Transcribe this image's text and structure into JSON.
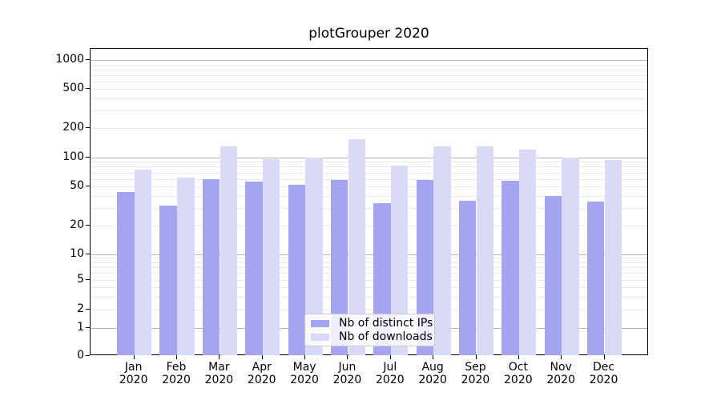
{
  "chart_data": {
    "type": "bar",
    "title": "plotGrouper 2020",
    "scale": "symlog",
    "grid": true,
    "legend_position": "lower center",
    "categories": [
      "Jan",
      "Feb",
      "Mar",
      "Apr",
      "May",
      "Jun",
      "Jul",
      "Aug",
      "Sep",
      "Oct",
      "Nov",
      "Dec"
    ],
    "category_year": "2020",
    "series": [
      {
        "name": "Nb of distinct IPs",
        "color": "#a4a4f0",
        "values": [
          44,
          32,
          60,
          56,
          52,
          58,
          34,
          58,
          36,
          57,
          40,
          35
        ]
      },
      {
        "name": "Nb of downloads",
        "color": "#d9d9f8",
        "values": [
          75,
          62,
          128,
          96,
          100,
          152,
          83,
          128,
          128,
          120,
          100,
          94
        ]
      }
    ],
    "yticks": [
      0,
      1,
      2,
      5,
      10,
      20,
      50,
      100,
      200,
      500,
      1000
    ],
    "ylim": [
      0,
      1300
    ],
    "colors": {
      "major_grid": "#b3b3b3",
      "minor_grid": "#e9e9e9",
      "spine": "#000000",
      "text": "#000000",
      "legend_border": "#c9c9c9",
      "legend_background": "rgba(255,255,255,0.82)"
    }
  }
}
